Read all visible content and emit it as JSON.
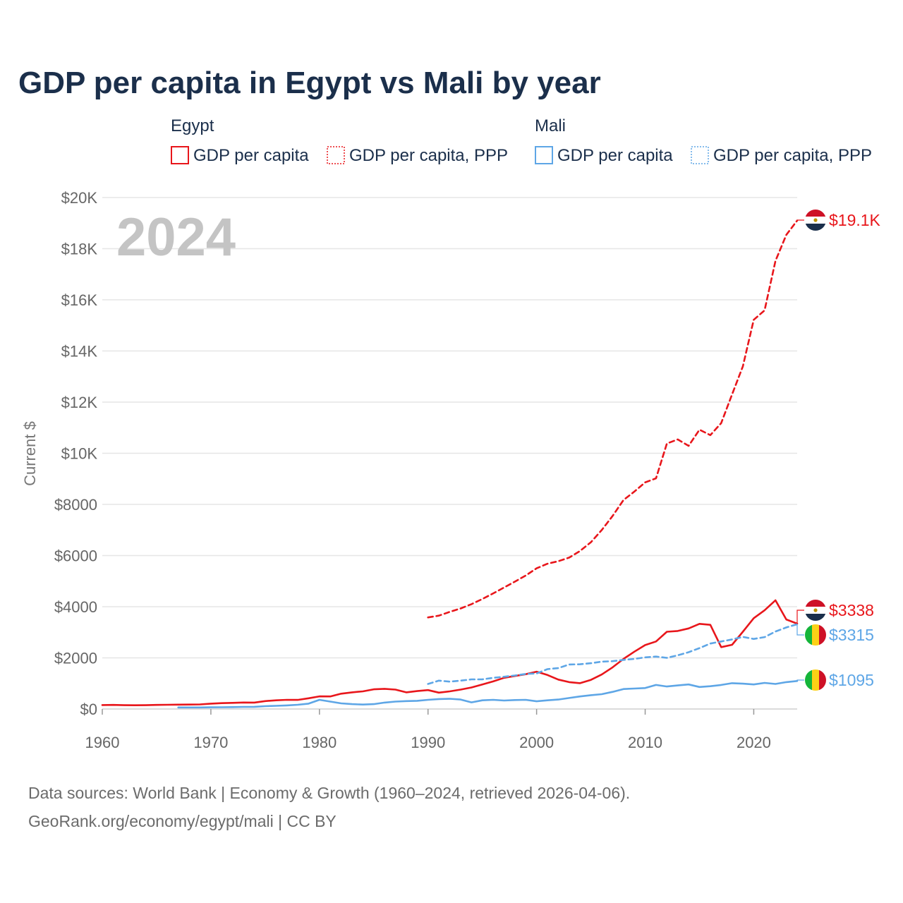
{
  "chart_data": {
    "type": "line",
    "title": "GDP per capita in Egypt vs Mali by year",
    "year_watermark": "2024",
    "ylabel": "Current $",
    "xlabel": "",
    "xlim": [
      1960,
      2024
    ],
    "ylim": [
      0,
      20000
    ],
    "x_ticks": [
      {
        "value": 1960,
        "label": "1960"
      },
      {
        "value": 1970,
        "label": "1970"
      },
      {
        "value": 1980,
        "label": "1980"
      },
      {
        "value": 1990,
        "label": "1990"
      },
      {
        "value": 2000,
        "label": "2000"
      },
      {
        "value": 2010,
        "label": "2010"
      },
      {
        "value": 2020,
        "label": "2020"
      }
    ],
    "y_ticks": [
      {
        "value": 0,
        "label": "$0"
      },
      {
        "value": 2000,
        "label": "$2000"
      },
      {
        "value": 4000,
        "label": "$4000"
      },
      {
        "value": 6000,
        "label": "$6000"
      },
      {
        "value": 8000,
        "label": "$8000"
      },
      {
        "value": 10000,
        "label": "$10K"
      },
      {
        "value": 12000,
        "label": "$12K"
      },
      {
        "value": 14000,
        "label": "$14K"
      },
      {
        "value": 16000,
        "label": "$16K"
      },
      {
        "value": 18000,
        "label": "$18K"
      },
      {
        "value": 20000,
        "label": "$20K"
      }
    ],
    "grid": true,
    "legend": {
      "groups": [
        {
          "name": "Egypt",
          "entries": [
            {
              "label": "GDP per capita",
              "series": "egypt-gdp"
            },
            {
              "label": "GDP per capita, PPP",
              "series": "egypt-ppp"
            }
          ]
        },
        {
          "name": "Mali",
          "entries": [
            {
              "label": "GDP per capita",
              "series": "mali-gdp"
            },
            {
              "label": "GDP per capita, PPP",
              "series": "mali-ppp"
            }
          ]
        }
      ]
    },
    "series": [
      {
        "id": "egypt-ppp",
        "name": "Egypt GDP per capita, PPP",
        "color": "#e8161b",
        "dashed": true,
        "end_label": "$19.1K",
        "flag": "egypt",
        "x": [
          1990,
          1991,
          1992,
          1993,
          1994,
          1995,
          1996,
          1997,
          1998,
          1999,
          2000,
          2001,
          2002,
          2003,
          2004,
          2005,
          2006,
          2007,
          2008,
          2009,
          2010,
          2011,
          2012,
          2013,
          2014,
          2015,
          2016,
          2017,
          2018,
          2019,
          2020,
          2021,
          2022,
          2023,
          2024
        ],
        "values": [
          3580,
          3650,
          3800,
          3930,
          4100,
          4300,
          4520,
          4750,
          4980,
          5220,
          5500,
          5680,
          5780,
          5920,
          6180,
          6520,
          7000,
          7550,
          8170,
          8500,
          8860,
          9020,
          10380,
          10540,
          10290,
          10920,
          10710,
          11180,
          12300,
          13400,
          15220,
          15590,
          17520,
          18540,
          19100
        ]
      },
      {
        "id": "egypt-gdp",
        "name": "Egypt GDP per capita",
        "color": "#e8161b",
        "dashed": false,
        "end_label": "$3338",
        "flag": "egypt",
        "x": [
          1960,
          1961,
          1962,
          1963,
          1964,
          1965,
          1966,
          1967,
          1968,
          1969,
          1970,
          1971,
          1972,
          1973,
          1974,
          1975,
          1976,
          1977,
          1978,
          1979,
          1980,
          1981,
          1982,
          1983,
          1984,
          1985,
          1986,
          1987,
          1988,
          1989,
          1990,
          1991,
          1992,
          1993,
          1994,
          1995,
          1996,
          1997,
          1998,
          1999,
          2000,
          2001,
          2002,
          2003,
          2004,
          2005,
          2006,
          2007,
          2008,
          2009,
          2010,
          2011,
          2012,
          2013,
          2014,
          2015,
          2016,
          2017,
          2018,
          2019,
          2020,
          2021,
          2022,
          2023,
          2024
        ],
        "values": [
          155,
          160,
          150,
          145,
          150,
          160,
          165,
          170,
          175,
          180,
          210,
          230,
          240,
          255,
          250,
          310,
          340,
          360,
          355,
          420,
          495,
          490,
          600,
          650,
          690,
          770,
          790,
          760,
          650,
          700,
          740,
          640,
          690,
          760,
          840,
          960,
          1080,
          1220,
          1290,
          1360,
          1460,
          1330,
          1150,
          1050,
          1010,
          1140,
          1350,
          1630,
          1960,
          2240,
          2500,
          2640,
          3020,
          3050,
          3150,
          3330,
          3290,
          2420,
          2510,
          3020,
          3550,
          3860,
          4250,
          3500,
          3338
        ]
      },
      {
        "id": "mali-ppp",
        "name": "Mali GDP per capita, PPP",
        "color": "#5ea6e6",
        "dashed": true,
        "end_label": "$3315",
        "flag": "mali",
        "x": [
          1990,
          1991,
          1992,
          1993,
          1994,
          1995,
          1996,
          1997,
          1998,
          1999,
          2000,
          2001,
          2002,
          2003,
          2004,
          2005,
          2006,
          2007,
          2008,
          2009,
          2010,
          2011,
          2012,
          2013,
          2014,
          2015,
          2016,
          2017,
          2018,
          2019,
          2020,
          2021,
          2022,
          2023,
          2024
        ],
        "values": [
          980,
          1110,
          1070,
          1110,
          1160,
          1160,
          1220,
          1260,
          1310,
          1370,
          1390,
          1560,
          1600,
          1740,
          1750,
          1790,
          1850,
          1870,
          1920,
          1960,
          2020,
          2050,
          2000,
          2100,
          2220,
          2380,
          2560,
          2640,
          2720,
          2820,
          2740,
          2810,
          3030,
          3190,
          3315
        ]
      },
      {
        "id": "mali-gdp",
        "name": "Mali GDP per capita",
        "color": "#5ea6e6",
        "dashed": false,
        "end_label": "$1095",
        "flag": "mali",
        "x": [
          1967,
          1968,
          1969,
          1970,
          1971,
          1972,
          1973,
          1974,
          1975,
          1976,
          1977,
          1978,
          1979,
          1980,
          1981,
          1982,
          1983,
          1984,
          1985,
          1986,
          1987,
          1988,
          1989,
          1990,
          1991,
          1992,
          1993,
          1994,
          1995,
          1996,
          1997,
          1998,
          1999,
          2000,
          2001,
          2002,
          2003,
          2004,
          2005,
          2006,
          2007,
          2008,
          2009,
          2010,
          2011,
          2012,
          2013,
          2014,
          2015,
          2016,
          2017,
          2018,
          2019,
          2020,
          2021,
          2022,
          2023,
          2024
        ],
        "values": [
          60,
          60,
          62,
          65,
          68,
          75,
          82,
          85,
          110,
          125,
          140,
          165,
          210,
          360,
          290,
          220,
          190,
          175,
          190,
          250,
          290,
          310,
          320,
          360,
          390,
          400,
          370,
          260,
          340,
          360,
          330,
          350,
          360,
          300,
          340,
          370,
          430,
          490,
          540,
          580,
          670,
          780,
          800,
          820,
          940,
          880,
          920,
          960,
          860,
          890,
          940,
          1010,
          990,
          960,
          1020,
          980,
          1050,
          1095
        ]
      }
    ],
    "source": {
      "line1": "Data sources: World Bank | Economy & Growth (1960–2024, retrieved 2026-04-06).",
      "line2": "GeoRank.org/economy/egypt/mali | CC BY"
    }
  }
}
